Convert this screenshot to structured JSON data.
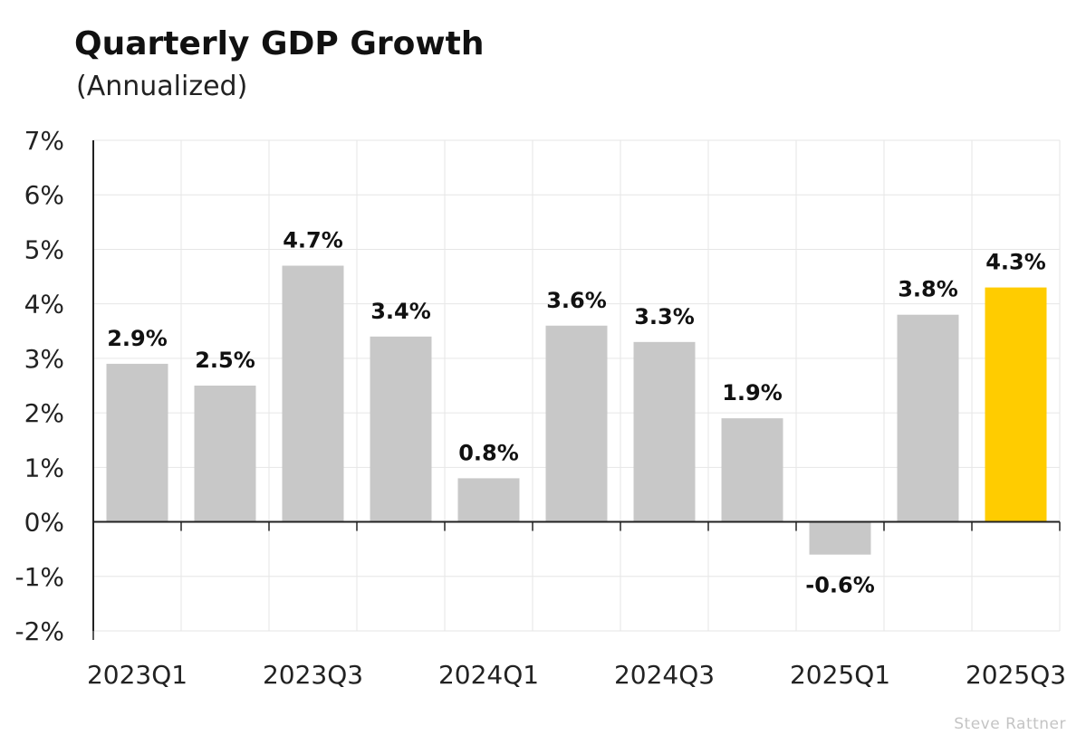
{
  "chart_data": {
    "type": "bar",
    "title": "Quarterly GDP Growth",
    "subtitle": "(Annualized)",
    "xlabel": "",
    "ylabel": "",
    "categories": [
      "2023Q1",
      "2023Q2",
      "2023Q3",
      "2023Q4",
      "2024Q1",
      "2024Q2",
      "2024Q3",
      "2024Q4",
      "2025Q1",
      "2025Q2",
      "2025Q3"
    ],
    "x_tick_labels": [
      "2023Q1",
      "",
      "2023Q3",
      "",
      "2024Q1",
      "",
      "2024Q3",
      "",
      "2025Q1",
      "",
      "2025Q3"
    ],
    "values": [
      2.9,
      2.5,
      4.7,
      3.4,
      0.8,
      3.6,
      3.3,
      1.9,
      -0.6,
      3.8,
      4.3
    ],
    "value_labels": [
      "2.9%",
      "2.5%",
      "4.7%",
      "3.4%",
      "0.8%",
      "3.6%",
      "3.3%",
      "1.9%",
      "-0.6%",
      "3.8%",
      "4.3%"
    ],
    "ylim": [
      -2,
      7
    ],
    "y_ticks": [
      -2,
      -1,
      0,
      1,
      2,
      3,
      4,
      5,
      6,
      7
    ],
    "y_tick_labels": [
      "-2%",
      "-1%",
      "0%",
      "1%",
      "2%",
      "3%",
      "4%",
      "5%",
      "6%",
      "7%"
    ],
    "grid": true,
    "bar_color": "#c8c8c8",
    "highlight_color": "#ffcc00",
    "highlight_index": 10
  },
  "watermark": "Steve Rattner"
}
